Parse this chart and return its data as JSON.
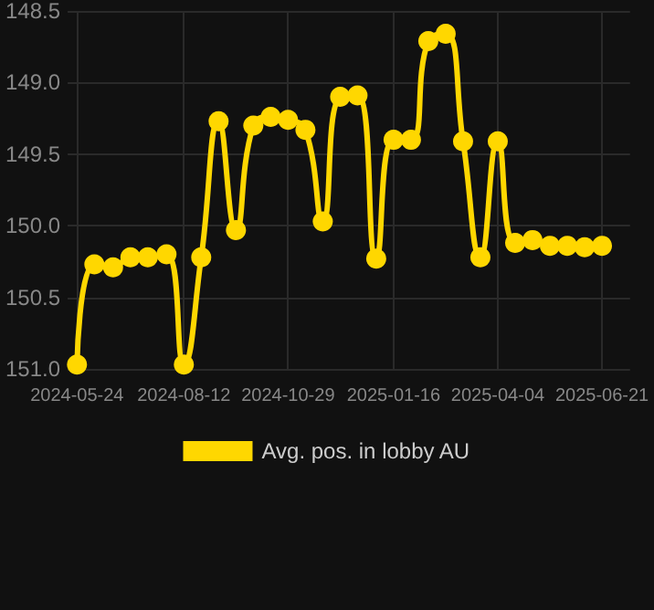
{
  "chart_data": {
    "type": "line",
    "x": [
      "2024-05-24",
      "2024-06-06",
      "2024-06-20",
      "2024-07-03",
      "2024-07-16",
      "2024-07-30",
      "2024-08-12",
      "2024-08-25",
      "2024-09-07",
      "2024-09-20",
      "2024-10-03",
      "2024-10-16",
      "2024-10-29",
      "2024-11-11",
      "2024-11-24",
      "2024-12-07",
      "2024-12-20",
      "2025-01-03",
      "2025-01-16",
      "2025-01-29",
      "2025-02-11",
      "2025-02-24",
      "2025-03-09",
      "2025-03-22",
      "2025-04-04",
      "2025-04-17",
      "2025-04-30",
      "2025-05-13",
      "2025-05-26",
      "2025-06-08",
      "2025-06-21"
    ],
    "series": [
      {
        "name": "Avg. pos. in lobby AU",
        "color": "#ffd700",
        "values": [
          150.97,
          150.27,
          150.29,
          150.22,
          150.22,
          150.2,
          150.97,
          150.22,
          149.27,
          150.03,
          149.3,
          149.24,
          149.26,
          149.33,
          149.97,
          149.1,
          149.09,
          150.23,
          149.4,
          149.4,
          148.71,
          148.66,
          149.41,
          150.22,
          149.41,
          150.12,
          150.1,
          150.14,
          150.14,
          150.15,
          150.14
        ]
      }
    ],
    "xlim": [
      "2024-05-17",
      "2025-07-12"
    ],
    "xticks": [
      "2024-05-24",
      "2024-08-12",
      "2024-10-29",
      "2025-01-16",
      "2025-04-04",
      "2025-06-21"
    ],
    "ylim": [
      151.0,
      148.5
    ],
    "yticks": [
      {
        "value": 148.5,
        "label": "148.5"
      },
      {
        "value": 149,
        "label": "149.0"
      },
      {
        "value": 149.5,
        "label": "149.5"
      },
      {
        "value": 150,
        "label": "150.0"
      },
      {
        "value": 150.5,
        "label": "150.5"
      },
      {
        "value": 151,
        "label": "151.0"
      }
    ],
    "grid": true,
    "legend": "bottom",
    "marker": "circle",
    "line_style": "solid"
  }
}
